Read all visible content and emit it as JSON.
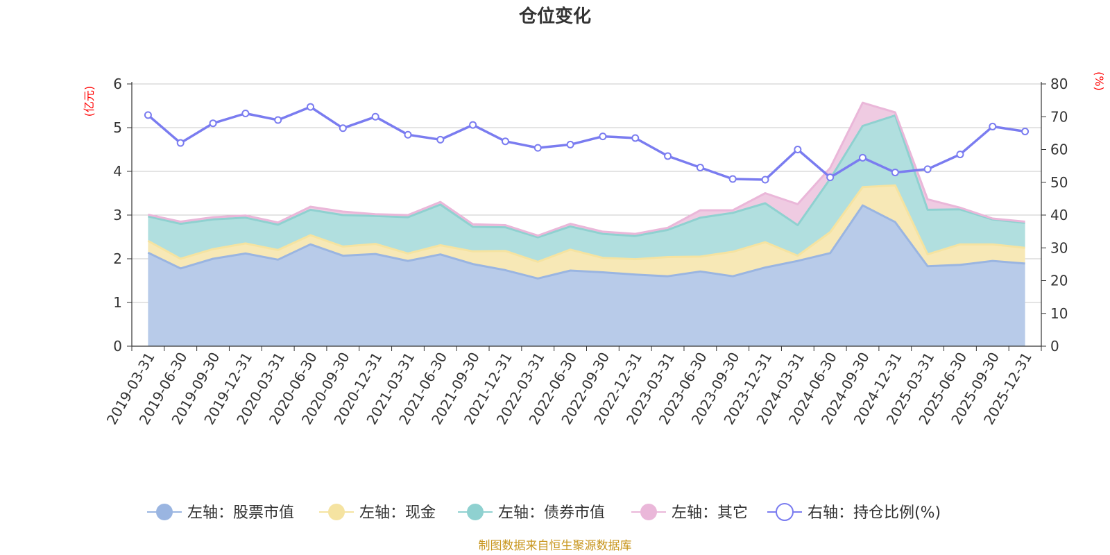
{
  "chart_data": {
    "type": "area",
    "title": "仓位变化",
    "left_unit": "(亿元)",
    "right_unit": "(%)",
    "left_ylim": [
      0,
      6
    ],
    "left_ticks": [
      "0",
      "1",
      "2",
      "3",
      "4",
      "5",
      "6"
    ],
    "right_ylim": [
      0,
      80
    ],
    "right_ticks": [
      "0",
      "10",
      "20",
      "30",
      "40",
      "50",
      "60",
      "70",
      "80"
    ],
    "categories": [
      "2019-03-31",
      "2019-06-30",
      "2019-09-30",
      "2019-12-31",
      "2020-03-31",
      "2020-06-30",
      "2020-09-30",
      "2020-12-31",
      "2021-03-31",
      "2021-06-30",
      "2021-09-30",
      "2021-12-31",
      "2022-03-31",
      "2022-06-30",
      "2022-09-30",
      "2022-12-31",
      "2023-03-31",
      "2023-06-30",
      "2023-09-30",
      "2023-12-31",
      "2024-03-31",
      "2024-06-30",
      "2024-09-30",
      "2024-12-31",
      "2025-03-31",
      "2025-06-30",
      "2025-09-30",
      "2025-12-31"
    ],
    "stacked_series": [
      {
        "name": "左轴：股票市值",
        "color": "#9ab5e1",
        "fill": "#b8cbe9",
        "values": [
          2.14,
          1.78,
          2.0,
          2.12,
          1.98,
          2.33,
          2.07,
          2.11,
          1.95,
          2.1,
          1.88,
          1.74,
          1.55,
          1.73,
          1.69,
          1.64,
          1.6,
          1.71,
          1.6,
          1.8,
          1.95,
          2.13,
          3.22,
          2.84,
          1.83,
          1.86,
          1.95,
          1.89
        ]
      },
      {
        "name": "左轴：现金",
        "color": "#f5e3a1",
        "fill": "#f7e8b6",
        "values": [
          0.27,
          0.22,
          0.22,
          0.23,
          0.22,
          0.21,
          0.21,
          0.23,
          0.17,
          0.21,
          0.29,
          0.44,
          0.38,
          0.48,
          0.33,
          0.35,
          0.44,
          0.34,
          0.56,
          0.58,
          0.12,
          0.48,
          0.42,
          0.84,
          0.27,
          0.47,
          0.38,
          0.36
        ]
      },
      {
        "name": "左轴：债券市值",
        "color": "#8fd1d0",
        "fill": "#b1dfdf",
        "values": [
          0.56,
          0.8,
          0.68,
          0.59,
          0.58,
          0.58,
          0.72,
          0.64,
          0.83,
          0.93,
          0.56,
          0.54,
          0.56,
          0.53,
          0.55,
          0.53,
          0.62,
          0.89,
          0.89,
          0.89,
          0.7,
          1.22,
          1.4,
          1.6,
          1.02,
          0.8,
          0.57,
          0.57
        ]
      },
      {
        "name": "左轴：其它",
        "color": "#eab7d9",
        "fill": "#efcbe2",
        "values": [
          0.04,
          0.05,
          0.05,
          0.05,
          0.05,
          0.07,
          0.08,
          0.04,
          0.05,
          0.06,
          0.06,
          0.05,
          0.04,
          0.06,
          0.05,
          0.05,
          0.05,
          0.17,
          0.06,
          0.23,
          0.48,
          0.25,
          0.53,
          0.07,
          0.24,
          0.04,
          0.02,
          0.03
        ]
      }
    ],
    "line_series": {
      "name": "右轴：持仓比例(%)",
      "color": "#7a7cf0",
      "axis": "right",
      "values": [
        70.5,
        62,
        68,
        71,
        69,
        73,
        66.5,
        70,
        64.5,
        63,
        67.5,
        62.5,
        60.5,
        61.5,
        64,
        63.5,
        58,
        54.5,
        51,
        50.8,
        60,
        51.5,
        57.5,
        53,
        54,
        58.5,
        67,
        65.5
      ]
    }
  },
  "legend": [
    {
      "label": "左轴：股票市值",
      "color": "#9ab5e1",
      "hollow": false
    },
    {
      "label": "左轴：现金",
      "color": "#f5e3a1",
      "hollow": false
    },
    {
      "label": "左轴：债券市值",
      "color": "#8fd1d0",
      "hollow": false
    },
    {
      "label": "左轴：其它",
      "color": "#eab7d9",
      "hollow": false
    },
    {
      "label": "右轴：持仓比例(%)",
      "color": "#7a7cf0",
      "hollow": true
    }
  ],
  "source": "制图数据来自恒生聚源数据库"
}
